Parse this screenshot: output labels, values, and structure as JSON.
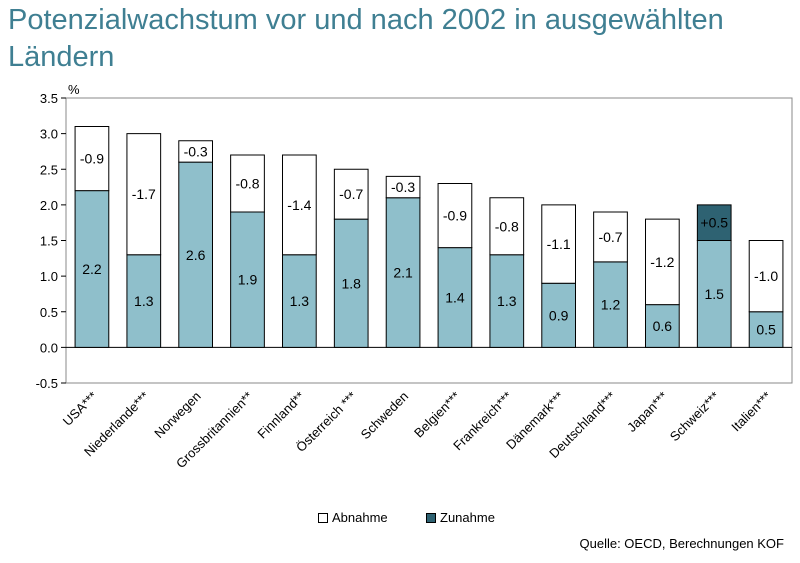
{
  "title": "Potenzialwachstum vor und nach 2002 in ausgewählten Ländern",
  "source": "Quelle: OECD, Berechnungen KOF",
  "colors": {
    "base": "#8fbfcb",
    "increase": "#2e6272",
    "decrease": "#ffffff",
    "title": "#3f7f92"
  },
  "chart_data": {
    "type": "bar",
    "ylabel": "%",
    "ylim": [
      -0.5,
      3.5
    ],
    "yticks": [
      "3.5",
      "3.0",
      "2.5",
      "2.0",
      "1.5",
      "1.0",
      "0.5",
      "0.0",
      "-0.5"
    ],
    "ytick_values": [
      3.5,
      3.0,
      2.5,
      2.0,
      1.5,
      1.0,
      0.5,
      0.0,
      -0.5
    ],
    "legend": [
      {
        "name": "Abnahme",
        "color": "#ffffff"
      },
      {
        "name": "Zunahme",
        "color": "#2e6272"
      }
    ],
    "legend_position": "bottom",
    "categories": [
      "USA***",
      "Niederlande***",
      "Norwegen",
      "Grossbritannien**",
      "Finnland**",
      "Österreich ***",
      "Schweden",
      "Belgien***",
      "Frankreich***",
      "Dänemark***",
      "Deutschland***",
      "Japan***",
      "Schweiz***",
      "Italien***"
    ],
    "base_values": [
      2.2,
      1.3,
      2.6,
      1.9,
      1.3,
      1.8,
      2.1,
      1.4,
      1.3,
      0.9,
      1.2,
      0.6,
      1.5,
      0.5
    ],
    "base_labels": [
      "2.2",
      "1.3",
      "2.6",
      "1.9",
      "1.3",
      "1.8",
      "2.1",
      "1.4",
      "1.3",
      "0.9",
      "1.2",
      "0.6",
      "1.5",
      "0.5"
    ],
    "change_values": [
      -0.9,
      -1.7,
      -0.3,
      -0.8,
      -1.4,
      -0.7,
      -0.3,
      -0.9,
      -0.8,
      -1.1,
      -0.7,
      -1.2,
      0.5,
      -1.0
    ],
    "change_labels": [
      "-0.9",
      "-1.7",
      "-0.3",
      "-0.8",
      "-1.4",
      "-0.7",
      "-0.3",
      "-0.9",
      "-0.8",
      "-1.1",
      "-0.7",
      "-1.2",
      "+0.5",
      "-1.0"
    ]
  }
}
